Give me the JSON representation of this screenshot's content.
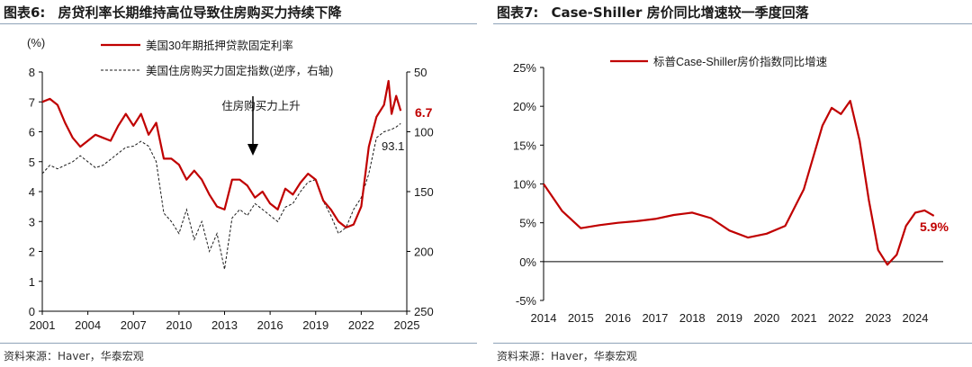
{
  "left": {
    "title_num": "图表6:",
    "title_text": "房贷利率长期维持高位导致住房购买力持续下降",
    "source": "资料来源：Haver，华泰宏观",
    "chart_data": {
      "type": "line",
      "ylabel_left": "(%)",
      "yticks_left": [
        "0",
        "1",
        "2",
        "3",
        "4",
        "5",
        "6",
        "7",
        "8"
      ],
      "ylim_left": [
        0,
        8
      ],
      "yticks_right": [
        "50",
        "100",
        "150",
        "200",
        "250"
      ],
      "ylim_right_inverted": [
        50,
        250
      ],
      "xticks": [
        "2001",
        "2004",
        "2007",
        "2010",
        "2013",
        "2016",
        "2019",
        "2022",
        "2025"
      ],
      "xlim": [
        2001,
        2025
      ],
      "annotation": "住房购买力上升",
      "end_label_rate": "6.7",
      "end_label_index": "93.1",
      "series": [
        {
          "name": "美国30年期抵押贷款固定利率",
          "axis": "left",
          "color": "#c00000",
          "style": "solid",
          "x": [
            2001,
            2001.5,
            2002,
            2002.5,
            2003,
            2003.5,
            2004,
            2004.5,
            2005,
            2005.5,
            2006,
            2006.5,
            2007,
            2007.5,
            2008,
            2008.5,
            2009,
            2009.5,
            2010,
            2010.5,
            2011,
            2011.5,
            2012,
            2012.5,
            2013,
            2013.5,
            2014,
            2014.5,
            2015,
            2015.5,
            2016,
            2016.5,
            2017,
            2017.5,
            2018,
            2018.5,
            2019,
            2019.5,
            2020,
            2020.5,
            2021,
            2021.5,
            2022,
            2022.5,
            2023,
            2023.5,
            2023.8,
            2024,
            2024.3,
            2024.6
          ],
          "values": [
            7.0,
            7.1,
            6.9,
            6.3,
            5.8,
            5.5,
            5.7,
            5.9,
            5.8,
            5.7,
            6.2,
            6.6,
            6.2,
            6.6,
            5.9,
            6.3,
            5.1,
            5.1,
            4.9,
            4.4,
            4.7,
            4.4,
            3.9,
            3.5,
            3.4,
            4.4,
            4.4,
            4.2,
            3.8,
            4.0,
            3.6,
            3.4,
            4.1,
            3.9,
            4.3,
            4.6,
            4.4,
            3.7,
            3.4,
            3.0,
            2.8,
            2.9,
            3.5,
            5.5,
            6.5,
            6.9,
            7.7,
            6.6,
            7.2,
            6.7
          ]
        },
        {
          "name": "美国住房购买力固定指数(逆序，右轴)",
          "axis": "right",
          "color": "#1a1a1a",
          "style": "dashed",
          "x": [
            2001,
            2001.5,
            2002,
            2002.5,
            2003,
            2003.5,
            2004,
            2004.5,
            2005,
            2005.5,
            2006,
            2006.5,
            2007,
            2007.5,
            2008,
            2008.5,
            2009,
            2009.5,
            2010,
            2010.5,
            2011,
            2011.5,
            2012,
            2012.5,
            2013,
            2013.5,
            2014,
            2014.5,
            2015,
            2015.5,
            2016,
            2016.5,
            2017,
            2017.5,
            2018,
            2018.5,
            2019,
            2019.5,
            2020,
            2020.5,
            2021,
            2021.5,
            2022,
            2022.5,
            2023,
            2023.5,
            2024,
            2024.3,
            2024.6
          ],
          "values": [
            135,
            128,
            131,
            128,
            125,
            120,
            125,
            130,
            128,
            123,
            118,
            113,
            112,
            108,
            112,
            125,
            168,
            175,
            185,
            165,
            190,
            175,
            200,
            185,
            215,
            172,
            165,
            170,
            160,
            165,
            170,
            175,
            163,
            160,
            150,
            142,
            140,
            158,
            170,
            185,
            180,
            165,
            155,
            135,
            105,
            100,
            98,
            96,
            93.1
          ]
        }
      ]
    }
  },
  "right": {
    "title_num": "图表7:",
    "title_text": "Case-Shiller 房价同比增速较一季度回落",
    "source": "资料来源：Haver，华泰宏观",
    "chart_data": {
      "type": "line",
      "yticks": [
        "-5%",
        "0%",
        "5%",
        "10%",
        "15%",
        "20%",
        "25%"
      ],
      "ylim": [
        -5,
        25
      ],
      "xticks": [
        "2014",
        "2015",
        "2016",
        "2017",
        "2018",
        "2019",
        "2020",
        "2021",
        "2022",
        "2023",
        "2024"
      ],
      "xlim": [
        2014,
        2024.75
      ],
      "end_label": "5.9%",
      "series": [
        {
          "name": "标普Case-Shiller房价指数同比增速",
          "color": "#c00000",
          "x": [
            2014,
            2014.5,
            2015,
            2015.5,
            2016,
            2016.5,
            2017,
            2017.5,
            2018,
            2018.5,
            2019,
            2019.5,
            2020,
            2020.5,
            2021,
            2021.5,
            2021.75,
            2022,
            2022.25,
            2022.5,
            2022.75,
            2023,
            2023.25,
            2023.5,
            2023.75,
            2024,
            2024.25,
            2024.5
          ],
          "values": [
            10.0,
            6.5,
            4.3,
            4.7,
            5.0,
            5.2,
            5.5,
            6.0,
            6.3,
            5.6,
            4.0,
            3.1,
            3.6,
            4.6,
            9.3,
            17.5,
            19.8,
            19.0,
            20.7,
            15.6,
            7.9,
            1.5,
            -0.4,
            0.9,
            4.6,
            6.3,
            6.6,
            5.9
          ]
        }
      ]
    }
  }
}
